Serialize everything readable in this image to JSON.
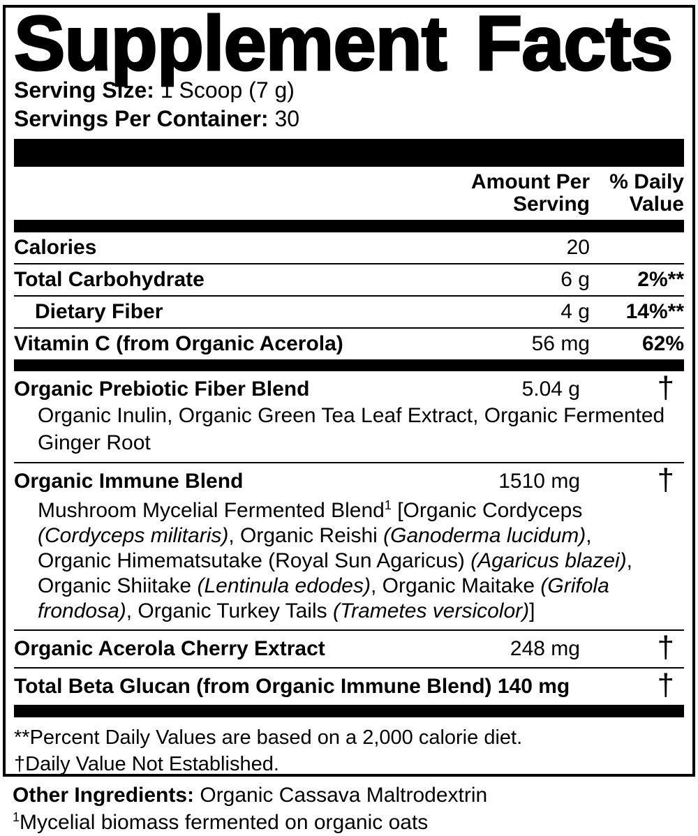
{
  "title": "Supplement Facts",
  "serving_info": {
    "serving_size_label": "Serving Size:",
    "serving_size_value": "1 Scoop (7 g)",
    "servings_per_container_label": "Servings Per Container:",
    "servings_per_container_value": "30"
  },
  "column_headers": {
    "amount_per_serving": [
      "Amount Per",
      "Serving"
    ],
    "percent_daily_value": [
      "% Daily",
      "Value"
    ]
  },
  "nutrients": [
    {
      "name": "Calories",
      "amount": "20",
      "daily_value": ""
    },
    {
      "name": "Total Carbohydrate",
      "amount": "6 g",
      "daily_value": "2%**"
    },
    {
      "name": "Dietary Fiber",
      "amount": "4 g",
      "daily_value": "14%**"
    },
    {
      "name_segments": [
        {
          "t": "Vitamin C ",
          "b": true
        },
        {
          "t": "(from Organic Acerola)"
        }
      ],
      "amount": "56 mg",
      "daily_value": "62%"
    }
  ],
  "blends": [
    {
      "name": "Organic Prebiotic Fiber Blend",
      "amount": "5.04 g",
      "daily_value": "†",
      "description_segments": [
        {
          "t": "Organic Inulin, Organic Green Tea Leaf Extract, Organic Fermented Ginger Root"
        }
      ]
    },
    {
      "name": "Organic Immune Blend",
      "amount": "1510 mg",
      "daily_value": "†",
      "description_segments": [
        {
          "t": "Mushroom Mycelial Fermented Blend"
        },
        {
          "t": "1",
          "sup": true
        },
        {
          "t": " [Organic Cordyceps "
        },
        {
          "t": "(Cordyceps militaris)",
          "i": true
        },
        {
          "t": ", Organic Reishi "
        },
        {
          "t": "(Ganoderma lucidum)",
          "i": true
        },
        {
          "t": ", Organic Himematsutake (Royal Sun Agaricus) "
        },
        {
          "t": "(Agaricus blazei)",
          "i": true
        },
        {
          "t": ", Organic Shiitake "
        },
        {
          "t": "(Lentinula edodes)",
          "i": true
        },
        {
          "t": ", Organic Maitake "
        },
        {
          "t": "(Grifola frondosa)",
          "i": true
        },
        {
          "t": ", Organic Turkey Tails "
        },
        {
          "t": "(Trametes versicolor)",
          "i": true
        },
        {
          "t": "]"
        }
      ]
    },
    {
      "name": "Organic Acerola Cherry Extract",
      "amount": "248 mg",
      "daily_value": "†"
    },
    {
      "name_segments": [
        {
          "t": "Total Beta Glucan ",
          "b": true
        },
        {
          "t": "(from Organic Immune Blend) 140 mg"
        }
      ],
      "daily_value": "†"
    }
  ],
  "footnotes": {
    "percent_dv": "**Percent Daily Values are based on a 2,000 calorie diet.",
    "dagger_note": "†Daily Value Not Established."
  },
  "other_ingredients_segments": [
    {
      "t": "Other Ingredients: ",
      "b": true
    },
    {
      "t": "Organic Cassava Maltrodextrin"
    }
  ],
  "mycelial_note_segments": [
    {
      "t": "1",
      "sup": true
    },
    {
      "t": "Mycelial biomass fermented on organic oats"
    }
  ],
  "colors": {
    "ink": "#000000",
    "background": "#ffffff"
  }
}
